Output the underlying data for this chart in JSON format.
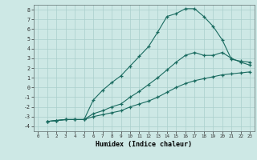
{
  "title": "",
  "xlabel": "Humidex (Indice chaleur)",
  "ylabel": "",
  "background_color": "#cde8e5",
  "grid_color": "#aacfcc",
  "line_color": "#1a6b60",
  "xlim": [
    -0.5,
    23.5
  ],
  "ylim": [
    -4.5,
    8.5
  ],
  "xticks": [
    0,
    1,
    2,
    3,
    4,
    5,
    6,
    7,
    8,
    9,
    10,
    11,
    12,
    13,
    14,
    15,
    16,
    17,
    18,
    19,
    20,
    21,
    22,
    23
  ],
  "yticks": [
    -4,
    -3,
    -2,
    -1,
    0,
    1,
    2,
    3,
    4,
    5,
    6,
    7,
    8
  ],
  "curve1_x": [
    1,
    2,
    3,
    4,
    5,
    6,
    7,
    8,
    9,
    10,
    11,
    12,
    13,
    14,
    15,
    16,
    17,
    18,
    19,
    20,
    21,
    22,
    23
  ],
  "curve1_y": [
    -3.5,
    -3.4,
    -3.3,
    -3.3,
    -3.3,
    -1.3,
    -0.3,
    0.5,
    1.2,
    2.2,
    3.2,
    4.2,
    5.7,
    7.3,
    7.6,
    8.1,
    8.1,
    7.3,
    6.3,
    4.9,
    2.9,
    2.7,
    2.6
  ],
  "curve2_x": [
    1,
    2,
    3,
    4,
    5,
    6,
    7,
    8,
    9,
    10,
    11,
    12,
    13,
    14,
    15,
    16,
    17,
    18,
    19,
    20,
    21,
    22,
    23
  ],
  "curve2_y": [
    -3.5,
    -3.4,
    -3.3,
    -3.3,
    -3.3,
    -2.7,
    -2.4,
    -2.0,
    -1.7,
    -1.0,
    -0.4,
    0.3,
    1.0,
    1.8,
    2.6,
    3.3,
    3.6,
    3.3,
    3.3,
    3.6,
    3.0,
    2.6,
    2.3
  ],
  "curve3_x": [
    1,
    2,
    3,
    4,
    5,
    6,
    7,
    8,
    9,
    10,
    11,
    12,
    13,
    14,
    15,
    16,
    17,
    18,
    19,
    20,
    21,
    22,
    23
  ],
  "curve3_y": [
    -3.5,
    -3.4,
    -3.3,
    -3.3,
    -3.3,
    -3.0,
    -2.8,
    -2.6,
    -2.4,
    -2.0,
    -1.7,
    -1.4,
    -1.0,
    -0.5,
    0.0,
    0.4,
    0.7,
    0.9,
    1.1,
    1.3,
    1.4,
    1.5,
    1.6
  ]
}
